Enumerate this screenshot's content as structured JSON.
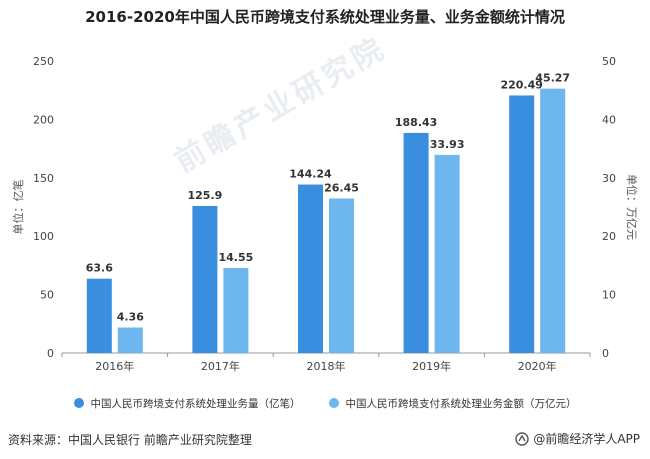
{
  "title": "2016-2020年中国人民币跨境支付系统处理业务量、业务金额统计情况",
  "footer": {
    "source": "资料来源：中国人民银行 前瞻产业研究院整理",
    "brand": "@前瞻经济学人APP"
  },
  "watermark": "前瞻产业研究院",
  "colors": {
    "series1": "#3a8ee0",
    "series2": "#6db7ee"
  },
  "chart_data": {
    "type": "bar",
    "title": "2016-2020年中国人民币跨境支付系统处理业务量、业务金额统计情况",
    "categories": [
      "2016年",
      "2017年",
      "2018年",
      "2019年",
      "2020年"
    ],
    "series": [
      {
        "name": "中国人民币跨境支付系统处理业务量（亿笔）",
        "axis": "left",
        "values": [
          63.6,
          125.9,
          144.24,
          188.43,
          220.49
        ],
        "labels": [
          "63.6",
          "125.9",
          "144.24",
          "188.43",
          "220.49"
        ]
      },
      {
        "name": "中国人民币跨境支付系统处理业务金额（万亿元）",
        "axis": "right",
        "values": [
          4.36,
          14.55,
          26.45,
          33.93,
          45.27
        ],
        "labels": [
          "4.36",
          "14.55",
          "26.45",
          "33.93",
          "45.27"
        ]
      }
    ],
    "ylabel_left": "单位：亿笔",
    "ylabel_right": "单位：万亿元",
    "ylim_left": [
      0,
      250
    ],
    "yticks_left": [
      "0",
      "50",
      "100",
      "150",
      "200",
      "250"
    ],
    "ylim_right": [
      0,
      50
    ],
    "yticks_right": [
      "0",
      "10",
      "20",
      "30",
      "40",
      "50"
    ],
    "grid": false,
    "legend": "bottom"
  }
}
